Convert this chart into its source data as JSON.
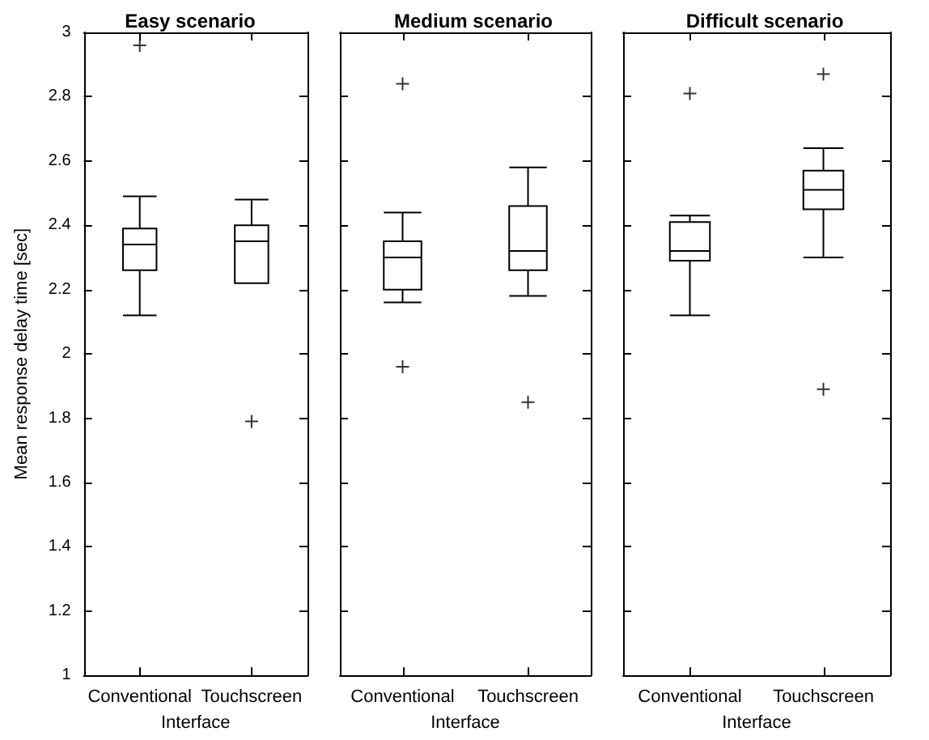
{
  "chart_data": [
    {
      "type": "box",
      "title": "Easy scenario",
      "xlabel": "Interface",
      "ylabel": "Mean response delay time [sec]",
      "categories": [
        "Conventional",
        "Touchscreen"
      ],
      "boxes": [
        {
          "low": 2.12,
          "q1": 2.26,
          "median": 2.34,
          "q3": 2.39,
          "high": 2.49,
          "outliers": [
            2.96
          ]
        },
        {
          "low": 2.22,
          "q1": 2.22,
          "median": 2.35,
          "q3": 2.4,
          "high": 2.48,
          "outliers": [
            1.79
          ]
        }
      ],
      "ylim": [
        1,
        3
      ],
      "yticks": [
        1,
        1.2,
        1.4,
        1.6,
        1.8,
        2,
        2.2,
        2.4,
        2.6,
        2.8,
        3
      ],
      "grid": false
    },
    {
      "type": "box",
      "title": "Medium scenario",
      "xlabel": "Interface",
      "categories": [
        "Conventional",
        "Touchscreen"
      ],
      "boxes": [
        {
          "low": 2.16,
          "q1": 2.2,
          "median": 2.3,
          "q3": 2.35,
          "high": 2.44,
          "outliers": [
            2.84,
            1.96
          ]
        },
        {
          "low": 2.18,
          "q1": 2.26,
          "median": 2.32,
          "q3": 2.46,
          "high": 2.58,
          "outliers": [
            1.85
          ]
        }
      ],
      "ylim": [
        1,
        3
      ],
      "yticks": [
        1,
        1.2,
        1.4,
        1.6,
        1.8,
        2,
        2.2,
        2.4,
        2.6,
        2.8,
        3
      ],
      "grid": false,
      "tick_labels": "x"
    },
    {
      "type": "box",
      "title": "Difficult scenario",
      "xlabel": "Interface",
      "categories": [
        "Conventional",
        "Touchscreen"
      ],
      "boxes": [
        {
          "low": 2.12,
          "q1": 2.29,
          "median": 2.32,
          "q3": 2.41,
          "high": 2.43,
          "outliers": [
            2.81
          ]
        },
        {
          "low": 2.3,
          "q1": 2.45,
          "median": 2.51,
          "q3": 2.57,
          "high": 2.64,
          "outliers": [
            2.87,
            1.89
          ]
        }
      ],
      "ylim": [
        1,
        3
      ],
      "yticks": [
        1,
        1.2,
        1.4,
        1.6,
        1.8,
        2,
        2.2,
        2.4,
        2.6,
        2.8,
        3
      ],
      "grid": false,
      "tick_labels": "x"
    }
  ]
}
